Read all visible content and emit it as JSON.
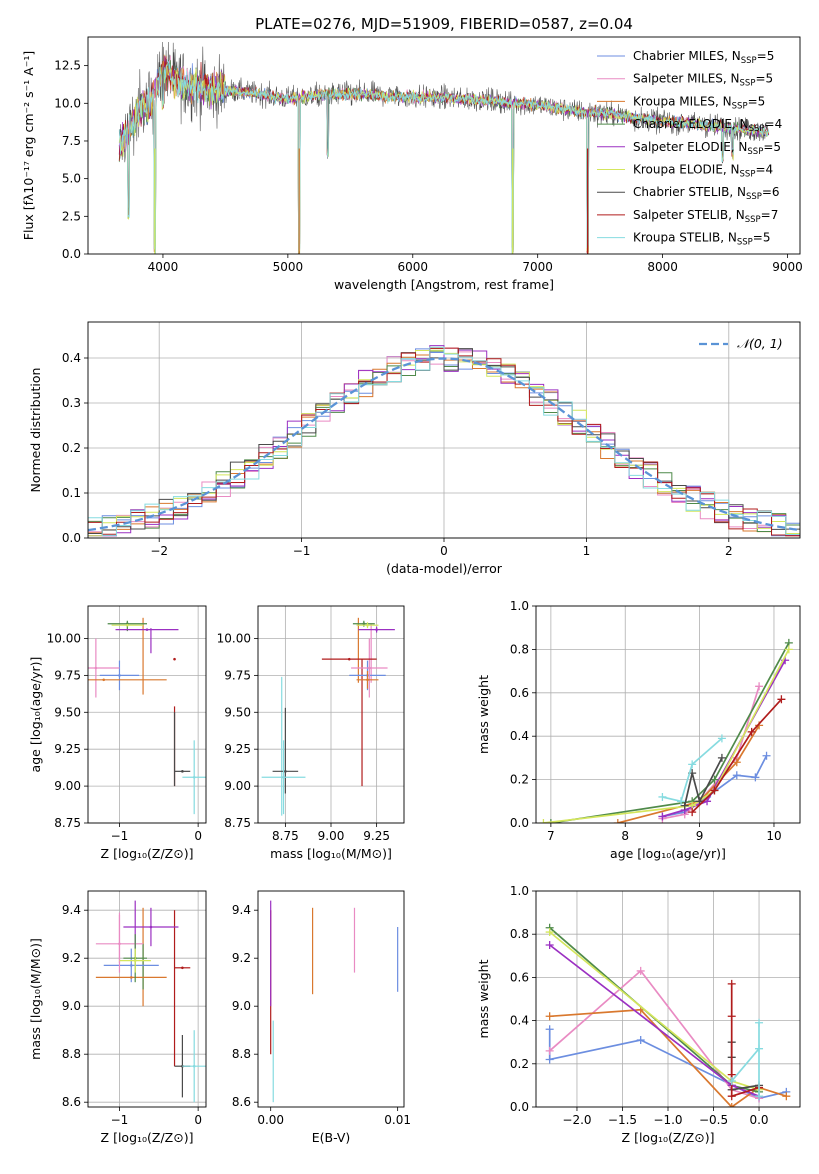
{
  "title": "PLATE=0276, MJD=51909, FIBERID=0587, z=0.04",
  "colors": {
    "Chabrier MILES": "#6c8ee0",
    "Salpeter MILES": "#e98bc3",
    "Kroupa MILES": "#d9782e",
    "Chabrier ELODIE": "#4f8a4a",
    "Salpeter ELODIE": "#9b30c2",
    "Kroupa ELODIE": "#d4e65c",
    "Chabrier STELIB": "#4a4a4a",
    "Salpeter STELIB": "#b01c1c",
    "Kroupa STELIB": "#86dbe0",
    "normal": "#5a93d6"
  },
  "chart_data": [
    {
      "id": "spectrum",
      "type": "line",
      "xlabel": "wavelength [Angstrom, rest frame]",
      "ylabel": "Flux [fλ10⁻¹⁷ erg cm⁻² s⁻¹ A⁻¹]",
      "xlim": [
        3400,
        9100
      ],
      "ylim": [
        0,
        14.4
      ],
      "xticks": [
        4000,
        5000,
        6000,
        7000,
        8000,
        9000
      ],
      "yticks": [
        0.0,
        2.5,
        5.0,
        7.5,
        10.0,
        12.5
      ],
      "legend_position": "upper-right",
      "legend": [
        {
          "name": "Chabrier MILES",
          "label": "Chabrier MILES, N",
          "sub": "SSP",
          "n": "=5"
        },
        {
          "name": "Salpeter MILES",
          "label": "Salpeter MILES, N",
          "sub": "SSP",
          "n": "=5"
        },
        {
          "name": "Kroupa MILES",
          "label": "Kroupa MILES, N",
          "sub": "SSP",
          "n": "=5"
        },
        {
          "name": "Chabrier ELODIE",
          "label": "Chabrier ELODIE, N",
          "sub": "SSP",
          "n": "=4"
        },
        {
          "name": "Salpeter ELODIE",
          "label": "Salpeter ELODIE, N",
          "sub": "SSP",
          "n": "=5"
        },
        {
          "name": "Kroupa ELODIE",
          "label": "Kroupa ELODIE, N",
          "sub": "SSP",
          "n": "=4"
        },
        {
          "name": "Chabrier STELIB",
          "label": "Chabrier STELIB, N",
          "sub": "SSP",
          "n": "=6"
        },
        {
          "name": "Salpeter STELIB",
          "label": "Salpeter STELIB, N",
          "sub": "SSP",
          "n": "=7"
        },
        {
          "name": "Kroupa STELIB",
          "label": "Kroupa STELIB, N",
          "sub": "SSP",
          "n": "=5"
        }
      ],
      "continuum": {
        "x": [
          3650,
          3700,
          3800,
          3900,
          3950,
          4000,
          4100,
          4200,
          4400,
          4600,
          4800,
          5000,
          5200,
          5400,
          5600,
          5800,
          6000,
          6200,
          6400,
          6600,
          6800,
          7000,
          7200,
          7400,
          7600,
          7800,
          8000,
          8200,
          8400,
          8600,
          8850
        ],
        "y": [
          7.0,
          8.0,
          9.4,
          10.0,
          11.0,
          12.2,
          11.6,
          11.2,
          10.9,
          10.8,
          10.6,
          10.3,
          10.5,
          10.6,
          10.6,
          10.5,
          10.4,
          10.4,
          10.3,
          10.2,
          10.0,
          9.9,
          9.6,
          9.4,
          9.3,
          9.0,
          8.8,
          8.7,
          8.5,
          8.3,
          8.1
        ]
      },
      "absorption_features": [
        {
          "x": 3725,
          "y": 2.3
        },
        {
          "x": 3935,
          "y": 0.0
        },
        {
          "x": 4000,
          "y": 9.5
        },
        {
          "x": 5090,
          "y": 0.0
        },
        {
          "x": 5320,
          "y": 6.3
        },
        {
          "x": 6800,
          "y": 0.0
        },
        {
          "x": 7400,
          "y": 0.0
        },
        {
          "x": 8480,
          "y": 6.0
        },
        {
          "x": 8560,
          "y": 6.2
        }
      ]
    },
    {
      "id": "residuals",
      "type": "histogram",
      "xlabel": "(data-model)/error",
      "ylabel": "Normed distribution",
      "xlim": [
        -2.5,
        2.5
      ],
      "ylim": [
        0,
        0.48
      ],
      "xticks": [
        -2,
        -1,
        0,
        1,
        2
      ],
      "yticks": [
        0.0,
        0.1,
        0.2,
        0.3,
        0.4
      ],
      "grid": true,
      "legend_position": "upper-right",
      "legend_label": "𝒩(0, 1)",
      "bin_width": 0.1,
      "bin_start": -2.5
    },
    {
      "id": "age_vs_Z",
      "type": "errorbar",
      "xlabel": "Z [log₁₀(Z/Z⊙)]",
      "ylabel": "age  [log₁₀(age/yr)]",
      "xlim": [
        -1.4,
        0.1
      ],
      "ylim": [
        8.75,
        10.22
      ],
      "xticks": [
        -1,
        0
      ],
      "yticks": [
        8.75,
        9.0,
        9.25,
        9.5,
        9.75,
        10.0
      ],
      "grid": true,
      "points": [
        {
          "name": "Chabrier MILES",
          "x": -1.0,
          "xerr": 0.25,
          "y": 9.75,
          "yerr": 0.1
        },
        {
          "name": "Salpeter MILES",
          "x": -1.3,
          "xerr": 0.3,
          "y": 9.8,
          "yerr": 0.2
        },
        {
          "name": "Kroupa MILES",
          "x": -1.2,
          "xerr": 0.8,
          "y": 9.72,
          "yerr": 0.0
        },
        {
          "name": "Chabrier ELODIE",
          "x": -0.9,
          "xerr": 0.25,
          "y": 10.1,
          "yerr": 0.0
        },
        {
          "name": "Salpeter ELODIE",
          "x": -0.65,
          "xerr": 0.4,
          "y": 10.06,
          "yerr": 0.0
        },
        {
          "name": "Kroupa ELODIE",
          "x": -0.9,
          "xerr": 0.2,
          "y": 10.09,
          "yerr": 0.0
        },
        {
          "name": "Chabrier STELIB",
          "x": -0.2,
          "xerr": 0.1,
          "y": 9.1,
          "yerr": 0.0
        },
        {
          "name": "Salpeter STELIB",
          "x": -0.3,
          "xerr": 0.0,
          "y": 9.86,
          "yerr": 0.0
        },
        {
          "name": "Kroupa STELIB",
          "x": -0.05,
          "xerr": 0.15,
          "y": 9.06,
          "yerr": 0.25
        }
      ],
      "vlines": [
        {
          "name": "Kroupa MILES",
          "x": -0.7,
          "y0": 9.62,
          "y1": 10.14
        },
        {
          "name": "Chabrier ELODIE",
          "x": -0.9,
          "y0": 10.05,
          "y1": 10.12
        },
        {
          "name": "Salpeter ELODIE",
          "x": -0.6,
          "y0": 9.9,
          "y1": 10.07
        },
        {
          "name": "Salpeter STELIB",
          "x": -0.3,
          "y0": 9.0,
          "y1": 9.54
        },
        {
          "name": "Chabrier STELIB",
          "x": -0.3,
          "y0": 9.0,
          "y1": 9.5
        }
      ]
    },
    {
      "id": "age_vs_mass",
      "type": "errorbar",
      "xlabel": "mass [log₁₀(M/M⊙)]",
      "ylabel": "",
      "xlim": [
        8.6,
        9.4
      ],
      "ylim": [
        8.75,
        10.22
      ],
      "xticks": [
        8.75,
        9.0,
        9.25
      ],
      "yticks": [
        8.75,
        9.0,
        9.25,
        9.5,
        9.75,
        10.0
      ],
      "grid": true,
      "points": [
        {
          "name": "Chabrier MILES",
          "x": 9.2,
          "xerr": 0.1,
          "y": 9.75,
          "yerr": 0.1
        },
        {
          "name": "Salpeter MILES",
          "x": 9.21,
          "xerr": 0.1,
          "y": 9.8,
          "yerr": 0.2
        },
        {
          "name": "Kroupa MILES",
          "x": 9.2,
          "xerr": 0.06,
          "y": 9.72,
          "yerr": 0.06
        },
        {
          "name": "Chabrier ELODIE",
          "x": 9.18,
          "xerr": 0.06,
          "y": 10.1,
          "yerr": 0.02
        },
        {
          "name": "Salpeter ELODIE",
          "x": 9.25,
          "xerr": 0.1,
          "y": 10.06,
          "yerr": 0.02
        },
        {
          "name": "Kroupa ELODIE",
          "x": 9.2,
          "xerr": 0.06,
          "y": 10.09,
          "yerr": 0.02
        },
        {
          "name": "Chabrier STELIB",
          "x": 8.75,
          "xerr": 0.07,
          "y": 9.1,
          "yerr": 0.0
        },
        {
          "name": "Salpeter STELIB",
          "x": 9.1,
          "xerr": 0.15,
          "y": 9.86,
          "yerr": 0.0
        },
        {
          "name": "Kroupa STELIB",
          "x": 8.74,
          "xerr": 0.12,
          "y": 9.06,
          "yerr": 0.25
        }
      ],
      "vlines": [
        {
          "name": "Salpeter STELIB",
          "x": 9.17,
          "y0": 9.0,
          "y1": 9.86
        },
        {
          "name": "Chabrier STELIB",
          "x": 8.75,
          "y0": 8.95,
          "y1": 9.53
        },
        {
          "name": "Kroupa STELIB",
          "x": 8.73,
          "y0": 8.8,
          "y1": 9.74
        },
        {
          "name": "Kroupa MILES",
          "x": 9.15,
          "y0": 9.7,
          "y1": 10.14
        },
        {
          "name": "Salpeter MILES",
          "x": 9.22,
          "y0": 9.7,
          "y1": 10.1
        }
      ]
    },
    {
      "id": "weight_vs_age",
      "type": "line",
      "xlabel": "age  [log₁₀(age/yr)]",
      "ylabel": "mass weight",
      "xlim": [
        6.8,
        10.35
      ],
      "ylim": [
        0,
        1.0
      ],
      "xticks": [
        7,
        8,
        9,
        10
      ],
      "yticks": [
        0.0,
        0.2,
        0.4,
        0.6,
        0.8,
        1.0
      ],
      "grid": true,
      "series": [
        {
          "name": "Chabrier MILES",
          "x": [
            8.5,
            8.8,
            9.1,
            9.5,
            9.75,
            9.9
          ],
          "y": [
            0.03,
            0.05,
            0.12,
            0.22,
            0.21,
            0.31
          ]
        },
        {
          "name": "Salpeter MILES",
          "x": [
            8.5,
            8.8,
            9.0,
            9.5,
            9.8
          ],
          "y": [
            0.02,
            0.04,
            0.1,
            0.3,
            0.63
          ]
        },
        {
          "name": "Kroupa MILES",
          "x": [
            7.9,
            8.8,
            9.0,
            9.5,
            9.8
          ],
          "y": [
            0.0,
            0.08,
            0.1,
            0.28,
            0.45
          ]
        },
        {
          "name": "Chabrier ELODIE",
          "x": [
            7.0,
            8.9,
            9.2,
            10.2
          ],
          "y": [
            0.0,
            0.1,
            0.2,
            0.83
          ]
        },
        {
          "name": "Salpeter ELODIE",
          "x": [
            8.5,
            8.8,
            9.1,
            10.15
          ],
          "y": [
            0.03,
            0.06,
            0.1,
            0.75
          ]
        },
        {
          "name": "Kroupa ELODIE",
          "x": [
            6.9,
            8.9,
            9.2,
            10.2
          ],
          "y": [
            0.0,
            0.08,
            0.15,
            0.8
          ]
        },
        {
          "name": "Chabrier STELIB",
          "x": [
            8.8,
            8.9,
            9.0,
            9.3
          ],
          "y": [
            0.08,
            0.23,
            0.1,
            0.3
          ]
        },
        {
          "name": "Salpeter STELIB",
          "x": [
            8.9,
            9.2,
            9.7,
            10.1
          ],
          "y": [
            0.05,
            0.15,
            0.42,
            0.57
          ]
        },
        {
          "name": "Kroupa STELIB",
          "x": [
            8.5,
            8.75,
            8.9,
            9.3
          ],
          "y": [
            0.12,
            0.1,
            0.27,
            0.39
          ]
        }
      ]
    },
    {
      "id": "mass_vs_Z",
      "type": "errorbar",
      "xlabel": "Z [log₁₀(Z/Z⊙)]",
      "ylabel": "mass [log₁₀(M/M⊙)]",
      "xlim": [
        -1.4,
        0.1
      ],
      "ylim": [
        8.58,
        9.48
      ],
      "xticks": [
        -1,
        0
      ],
      "yticks": [
        8.6,
        8.8,
        9.0,
        9.2,
        9.4
      ],
      "grid": true,
      "points": [
        {
          "name": "Chabrier MILES",
          "x": -0.85,
          "xerr": 0.35,
          "y": 9.17,
          "yerr": 0.07
        },
        {
          "name": "Salpeter MILES",
          "x": -1.0,
          "xerr": 0.3,
          "y": 9.26,
          "yerr": 0.12
        },
        {
          "name": "Kroupa MILES",
          "x": -0.85,
          "xerr": 0.45,
          "y": 9.12,
          "yerr": 0.0
        },
        {
          "name": "Chabrier ELODIE",
          "x": -0.8,
          "xerr": 0.15,
          "y": 9.2,
          "yerr": 0.1
        },
        {
          "name": "Salpeter ELODIE",
          "x": -0.6,
          "xerr": 0.35,
          "y": 9.33,
          "yerr": 0.08
        },
        {
          "name": "Kroupa ELODIE",
          "x": -0.8,
          "xerr": 0.2,
          "y": 9.19,
          "yerr": 0.05
        },
        {
          "name": "Chabrier STELIB",
          "x": -0.2,
          "xerr": 0.1,
          "y": 8.75,
          "yerr": 0.13
        },
        {
          "name": "Salpeter STELIB",
          "x": -0.2,
          "xerr": 0.1,
          "y": 9.16,
          "yerr": 0.0
        },
        {
          "name": "Kroupa STELIB",
          "x": -0.05,
          "xerr": 0.15,
          "y": 8.75,
          "yerr": 0.15
        }
      ],
      "vlines": [
        {
          "name": "Kroupa MILES",
          "x": -0.7,
          "y0": 9.0,
          "y1": 9.41
        },
        {
          "name": "Salpeter MILES",
          "x": -1.0,
          "y0": 9.18,
          "y1": 9.39
        },
        {
          "name": "Salpeter STELIB",
          "x": -0.3,
          "y0": 8.75,
          "y1": 9.4
        },
        {
          "name": "Salpeter ELODIE",
          "x": -0.8,
          "y0": 9.24,
          "y1": 9.44
        },
        {
          "name": "Chabrier ELODIE",
          "x": -0.7,
          "y0": 9.07,
          "y1": 9.26
        }
      ]
    },
    {
      "id": "mass_vs_ebv",
      "type": "errorbar",
      "xlabel": "E(B-V)",
      "ylabel": "",
      "xlim": [
        -0.001,
        0.0105
      ],
      "ylim": [
        8.58,
        9.48
      ],
      "xticks": [
        0.0,
        0.01
      ],
      "xticklabels": [
        "0.00",
        "0.01"
      ],
      "yticks": [
        8.6,
        8.8,
        9.0,
        9.2,
        9.4
      ],
      "grid": false,
      "vlines": [
        {
          "name": "Salpeter STELIB",
          "x": 0.0,
          "y0": 8.8,
          "y1": 9.4
        },
        {
          "name": "Salpeter ELODIE",
          "x": 0.0,
          "y0": 9.0,
          "y1": 9.44
        },
        {
          "name": "Kroupa STELIB",
          "x": 0.0002,
          "y0": 8.6,
          "y1": 8.94
        },
        {
          "name": "Kroupa MILES",
          "x": 0.0033,
          "y0": 9.05,
          "y1": 9.41
        },
        {
          "name": "Salpeter MILES",
          "x": 0.0066,
          "y0": 9.14,
          "y1": 9.41
        },
        {
          "name": "Chabrier MILES",
          "x": 0.01,
          "y0": 9.06,
          "y1": 9.33
        }
      ]
    },
    {
      "id": "weight_vs_Z",
      "type": "line",
      "xlabel": "Z [log₁₀(Z/Z⊙)]",
      "ylabel": "mass weight",
      "xlim": [
        -2.45,
        0.45
      ],
      "ylim": [
        0,
        1.0
      ],
      "xticks": [
        -2.0,
        -1.5,
        -1.0,
        -0.5,
        0.0
      ],
      "yticks": [
        0.0,
        0.2,
        0.4,
        0.6,
        0.8,
        1.0
      ],
      "grid": true,
      "series": [
        {
          "name": "Chabrier MILES",
          "x": [
            -2.3,
            -2.3,
            -1.3,
            0.0,
            0.3
          ],
          "y": [
            0.36,
            0.22,
            0.31,
            0.04,
            0.07
          ]
        },
        {
          "name": "Salpeter MILES",
          "x": [
            -2.3,
            -1.3,
            -0.3,
            0.0
          ],
          "y": [
            0.26,
            0.63,
            0.08,
            0.04
          ]
        },
        {
          "name": "Kroupa MILES",
          "x": [
            -2.3,
            -1.3,
            -0.3,
            0.0,
            0.3
          ],
          "y": [
            0.42,
            0.45,
            0.0,
            0.09,
            0.05
          ]
        },
        {
          "name": "Chabrier ELODIE",
          "x": [
            -2.3,
            -0.3,
            0.0
          ],
          "y": [
            0.83,
            0.1,
            0.07
          ]
        },
        {
          "name": "Salpeter ELODIE",
          "x": [
            -2.3,
            -0.3,
            0.0
          ],
          "y": [
            0.75,
            0.1,
            0.05
          ]
        },
        {
          "name": "Kroupa ELODIE",
          "x": [
            -2.3,
            -0.3,
            0.0
          ],
          "y": [
            0.81,
            0.12,
            0.08
          ]
        },
        {
          "name": "Chabrier STELIB",
          "x": [
            -0.3,
            -0.3,
            -0.3,
            0.0
          ],
          "y": [
            0.3,
            0.23,
            0.08,
            0.1
          ]
        },
        {
          "name": "Salpeter STELIB",
          "x": [
            -0.3,
            -0.3,
            -0.3,
            -0.3,
            0.0
          ],
          "y": [
            0.57,
            0.42,
            0.15,
            0.05,
            0.09
          ]
        },
        {
          "name": "Kroupa STELIB",
          "x": [
            -0.3,
            0.0,
            0.0,
            0.0
          ],
          "y": [
            0.12,
            0.27,
            0.39,
            0.05
          ]
        }
      ]
    }
  ]
}
